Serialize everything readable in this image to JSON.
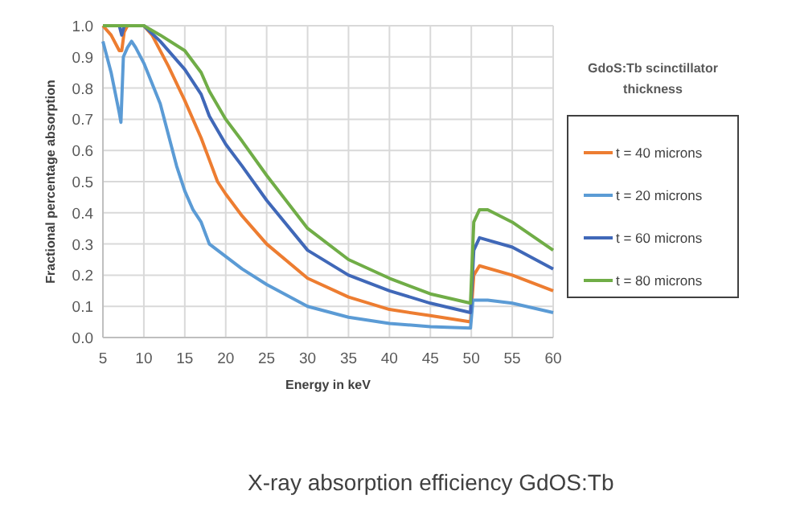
{
  "chart_data": {
    "type": "line",
    "ylabel": "Fractional percentage absorption",
    "xlabel": "Energy in keV",
    "legend_title": "GdoS:Tb scinctillator thickness",
    "annotations": [
      "X-ray absorption efficiency GdOS:Tb"
    ],
    "xlim": [
      5,
      60
    ],
    "xticks": [
      5,
      10,
      15,
      20,
      25,
      30,
      35,
      40,
      45,
      50,
      55,
      60
    ],
    "ylim": [
      0,
      1
    ],
    "yticks": [
      {
        "value": 0,
        "label": "0.0"
      },
      0.1,
      0.2,
      0.3,
      0.4,
      0.5,
      0.6,
      0.7,
      0.8,
      0.9,
      {
        "value": 1,
        "label": "1.0"
      }
    ],
    "grid": true,
    "legend": "right",
    "marker": "none",
    "line_style": "solid",
    "series": [
      {
        "name": "t = 40 microns",
        "color": "#ed7d31",
        "x": [
          5,
          6,
          7,
          7.3,
          7.6,
          8,
          10,
          11,
          13,
          15,
          17,
          18,
          19,
          20,
          22,
          25,
          30,
          35,
          40,
          45,
          49.9,
          50.3,
          51,
          55,
          60
        ],
        "values": [
          1.0,
          0.97,
          0.92,
          0.92,
          0.98,
          1.0,
          1.0,
          0.97,
          0.87,
          0.76,
          0.64,
          0.57,
          0.5,
          0.46,
          0.39,
          0.3,
          0.19,
          0.13,
          0.09,
          0.07,
          0.05,
          0.2,
          0.23,
          0.2,
          0.15
        ]
      },
      {
        "name": "t = 20 microns",
        "color": "#5b9bd5",
        "x": [
          5,
          6,
          7,
          7.2,
          7.5,
          8,
          8.5,
          9,
          10,
          12,
          14,
          15,
          16,
          17,
          18,
          19,
          20,
          22,
          25,
          30,
          35,
          40,
          45,
          49.9,
          50.2,
          52,
          55,
          60
        ],
        "values": [
          0.95,
          0.85,
          0.72,
          0.69,
          0.9,
          0.93,
          0.95,
          0.93,
          0.88,
          0.75,
          0.55,
          0.47,
          0.41,
          0.37,
          0.3,
          0.28,
          0.26,
          0.22,
          0.17,
          0.1,
          0.065,
          0.045,
          0.035,
          0.03,
          0.12,
          0.12,
          0.11,
          0.08
        ]
      },
      {
        "name": "t = 60 microns",
        "color": "#4068b8",
        "x": [
          5,
          7,
          7.3,
          7.6,
          10,
          12,
          15,
          17,
          18,
          20,
          22,
          25,
          30,
          35,
          40,
          45,
          49.9,
          50.3,
          51,
          55,
          60
        ],
        "values": [
          1.0,
          1.0,
          0.97,
          1.0,
          1.0,
          0.95,
          0.86,
          0.78,
          0.71,
          0.62,
          0.55,
          0.44,
          0.28,
          0.2,
          0.15,
          0.11,
          0.08,
          0.28,
          0.32,
          0.29,
          0.22
        ]
      },
      {
        "name": "t = 80 microns",
        "color": "#70ad47",
        "x": [
          5,
          10,
          12,
          15,
          17,
          18,
          20,
          22,
          25,
          30,
          35,
          40,
          45,
          49.9,
          50.3,
          51,
          52,
          55,
          60
        ],
        "values": [
          1.0,
          1.0,
          0.97,
          0.92,
          0.85,
          0.79,
          0.7,
          0.63,
          0.52,
          0.35,
          0.25,
          0.19,
          0.14,
          0.11,
          0.37,
          0.41,
          0.41,
          0.37,
          0.28
        ]
      }
    ]
  }
}
